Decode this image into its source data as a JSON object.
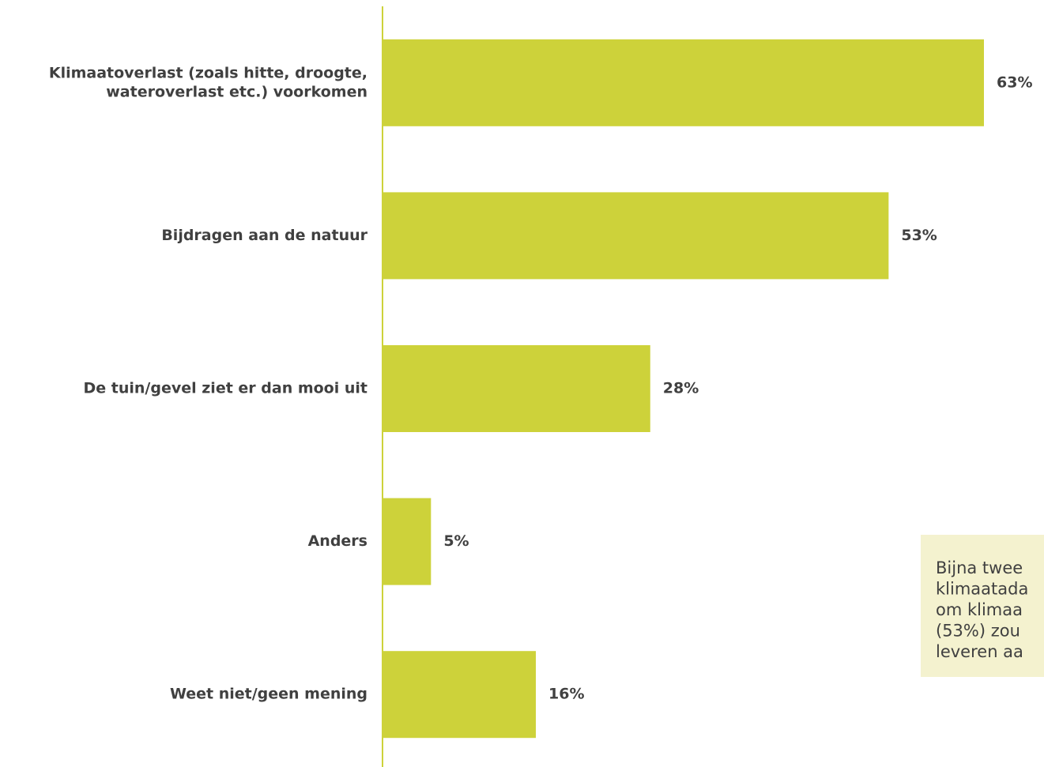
{
  "chart_data": {
    "type": "bar",
    "orientation": "horizontal",
    "categories": [
      [
        "Klimaatoverlast (zoals hitte, droogte,",
        "wateroverlast etc.) voorkomen"
      ],
      [
        "Bijdragen aan de natuur"
      ],
      [
        "De tuin/gevel ziet er dan mooi uit"
      ],
      [
        "Anders"
      ],
      [
        "Weet niet/geen mening"
      ]
    ],
    "values": [
      63,
      53,
      28,
      5,
      16
    ],
    "value_labels": [
      "63%",
      "53%",
      "28%",
      "5%",
      "16%"
    ],
    "color": "#cdd23a",
    "annotation": [
      "Bijna twee",
      "klimaatada",
      "om klimaa",
      "(53%) zou",
      "leveren aa"
    ]
  }
}
